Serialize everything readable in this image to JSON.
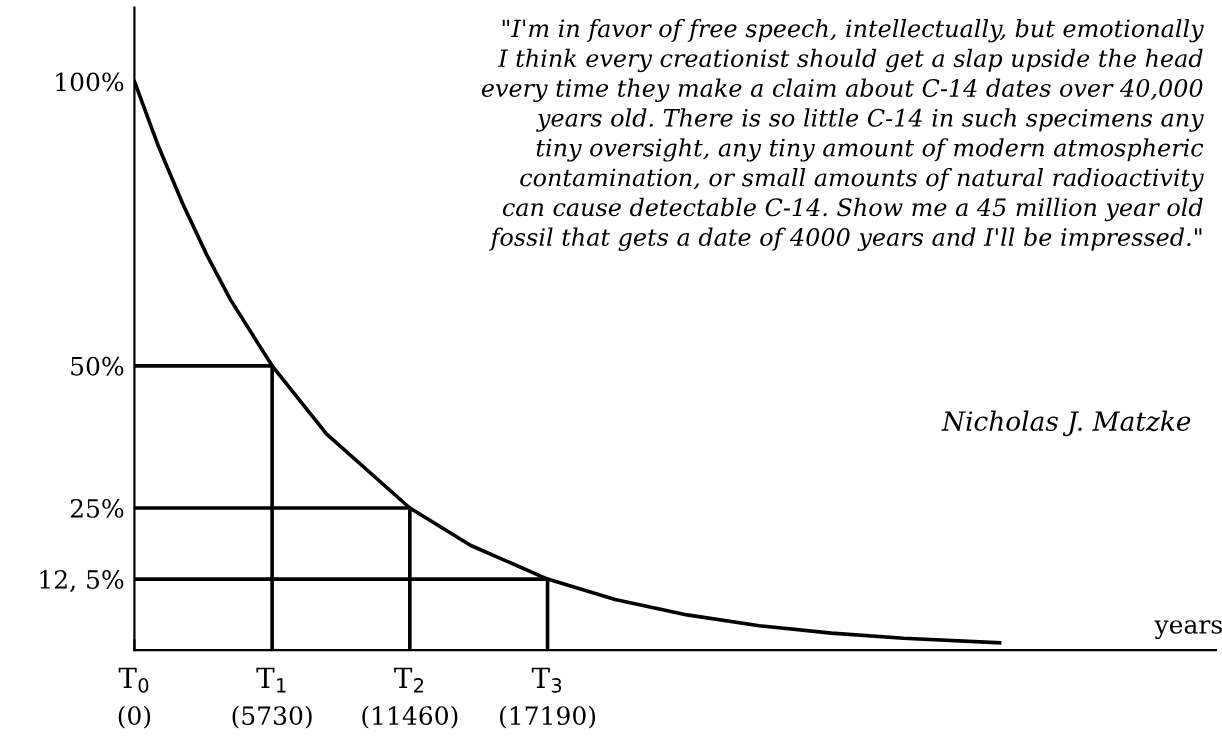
{
  "chart_data": {
    "type": "line",
    "xlabel": "years",
    "xlim": [
      0,
      45000
    ],
    "xticks": [
      {
        "value": 0,
        "label": "(0)"
      },
      {
        "value": 5730,
        "label": "(5730)"
      },
      {
        "value": 11460,
        "label": "(11460)"
      },
      {
        "value": 17190,
        "label": "(17190)"
      }
    ],
    "ylim": [
      0,
      113
    ],
    "yticks": [
      {
        "value": 100,
        "label": "100%"
      },
      {
        "value": 50,
        "label": "50%"
      },
      {
        "value": 25,
        "label": "25%"
      },
      {
        "value": 12.5,
        "label": "12, 5%"
      }
    ],
    "grid": false,
    "legend": false,
    "series": [
      {
        "color": "#000000",
        "x": [
          0,
          1000,
          2000,
          3000,
          4000,
          5730,
          8000,
          11460,
          14000,
          17190,
          20000,
          23000,
          26000,
          29000,
          32000,
          36000
        ],
        "values": [
          100,
          88.6,
          78.6,
          69.6,
          61.6,
          50,
          38,
          25,
          18.4,
          12.5,
          8.9,
          6.2,
          4.3,
          3,
          2.1,
          1.3
        ]
      },
      {
        "color": "#000000",
        "x": [
          0,
          5730,
          5730
        ],
        "values": [
          50,
          50,
          0
        ]
      },
      {
        "color": "#000000",
        "x": [
          0,
          11460,
          11460
        ],
        "values": [
          25,
          25,
          0
        ]
      },
      {
        "color": "#000000",
        "x": [
          0,
          17190,
          17190
        ],
        "values": [
          12.5,
          12.5,
          0
        ]
      }
    ],
    "annotations": [
      "\"I'm in favor of free speech, intellectually, but emotionally\nI think every creationist should get a slap upside the head\nevery time they make a claim about C-14 dates over 40,000\nyears old. There is so little C-14 in such specimens any\ntiny oversight, any tiny amount of modern atmospheric\ncontamination, or small amounts of natural radioactivity\ncan cause detectable C-14. Show me a 45 million year old\nfossil that gets a date of 4000 years and I'll be impressed.\"",
      "Nicholas J. Matzke",
      "T$_{0}$",
      {
        "text": "T$_{1}$",
        "x": 5730,
        "y": 0
      },
      {
        "text": "T$_{2}$",
        "x": 11460,
        "y": 0
      },
      {
        "text": "T$_{3}$",
        "x": 17190,
        "y": 0
      }
    ]
  }
}
